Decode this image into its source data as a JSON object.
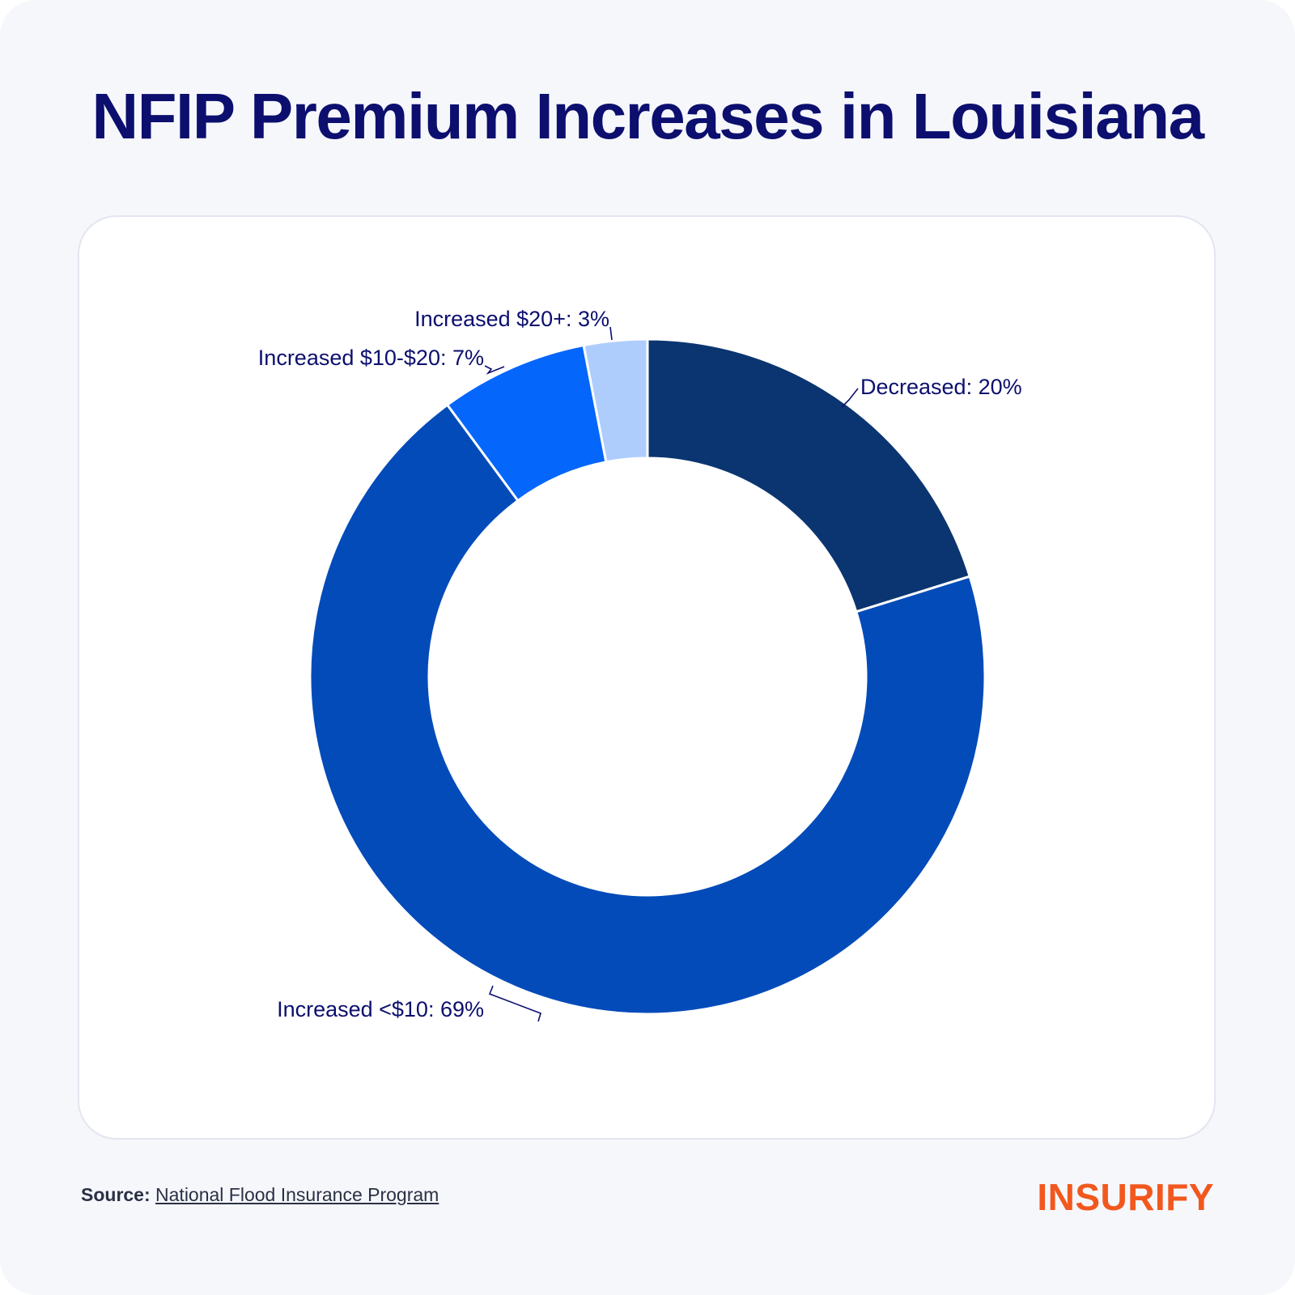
{
  "title": "NFIP Premium Increases in Louisiana",
  "chart_data": {
    "type": "pie",
    "style": "donut",
    "start_angle_deg": 0,
    "direction": "clockwise",
    "slices": [
      {
        "label": "Decreased: 20%",
        "category": "Decreased",
        "value": 20,
        "color": "#0b3570"
      },
      {
        "label": "Increased <$10: 69%",
        "category": "Increased <$10",
        "value": 69,
        "color": "#034bb9"
      },
      {
        "label": "Increased $10-$20: 7%",
        "category": "Increased $10-$20",
        "value": 7,
        "color": "#0566fb"
      },
      {
        "label": "Increased $20+: 3%",
        "category": "Increased $20+",
        "value": 3,
        "color": "#aecdfd"
      }
    ],
    "label_color": "#0c0f6e"
  },
  "footer": {
    "source_label": "Source:",
    "source_link": "National Flood Insurance Program"
  },
  "brand": {
    "logo_text": "INSURIFY",
    "logo_color": "#f2581e"
  }
}
